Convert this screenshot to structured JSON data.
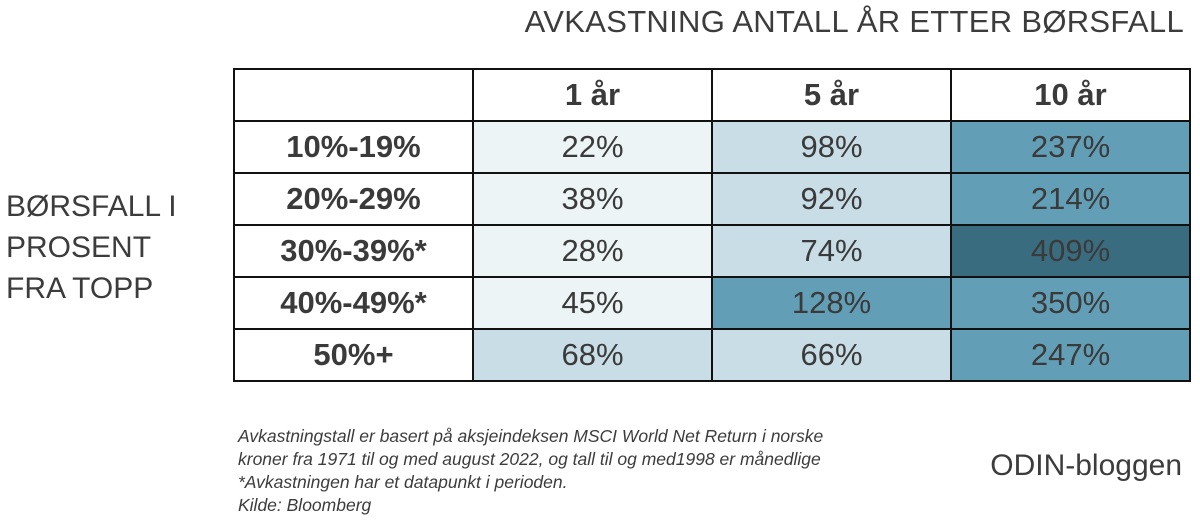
{
  "title": "AVKASTNING ANTALL ÅR ETTER BØRSFALL",
  "row_axis_label": [
    "BØRSFALL I",
    "PROSENT",
    "FRA TOPP"
  ],
  "colors": {
    "level_1": "#edf4f6",
    "level_2": "#c8dde6",
    "level_3": "#629fb6",
    "level_4": "#3a6c80"
  },
  "chart_data": {
    "type": "table",
    "title": "AVKASTNING ANTALL ÅR ETTER BØRSFALL",
    "columns": [
      "1 år",
      "5 år",
      "10 år"
    ],
    "rows": [
      {
        "label": "10%-19%",
        "values": [
          "22%",
          "98%",
          "237%"
        ],
        "shade": [
          1,
          2,
          3
        ]
      },
      {
        "label": "20%-29%",
        "values": [
          "38%",
          "92%",
          "214%"
        ],
        "shade": [
          1,
          2,
          3
        ]
      },
      {
        "label": "30%-39%*",
        "values": [
          "28%",
          "74%",
          "409%"
        ],
        "shade": [
          1,
          2,
          4
        ]
      },
      {
        "label": "40%-49%*",
        "values": [
          "45%",
          "128%",
          "350%"
        ],
        "shade": [
          1,
          3,
          3
        ]
      },
      {
        "label": "50%+",
        "values": [
          "68%",
          "66%",
          "247%"
        ],
        "shade": [
          2,
          2,
          3
        ]
      }
    ]
  },
  "footnote": [
    "Avkastningstall er basert på aksjeindeksen MSCI World Net Return i norske",
    "kroner fra 1971 til og med august 2022, og tall til og med1998 er månedlige",
    "*Avkastningen har et datapunkt i perioden.",
    "Kilde: Bloomberg"
  ],
  "brand": "ODIN-bloggen"
}
